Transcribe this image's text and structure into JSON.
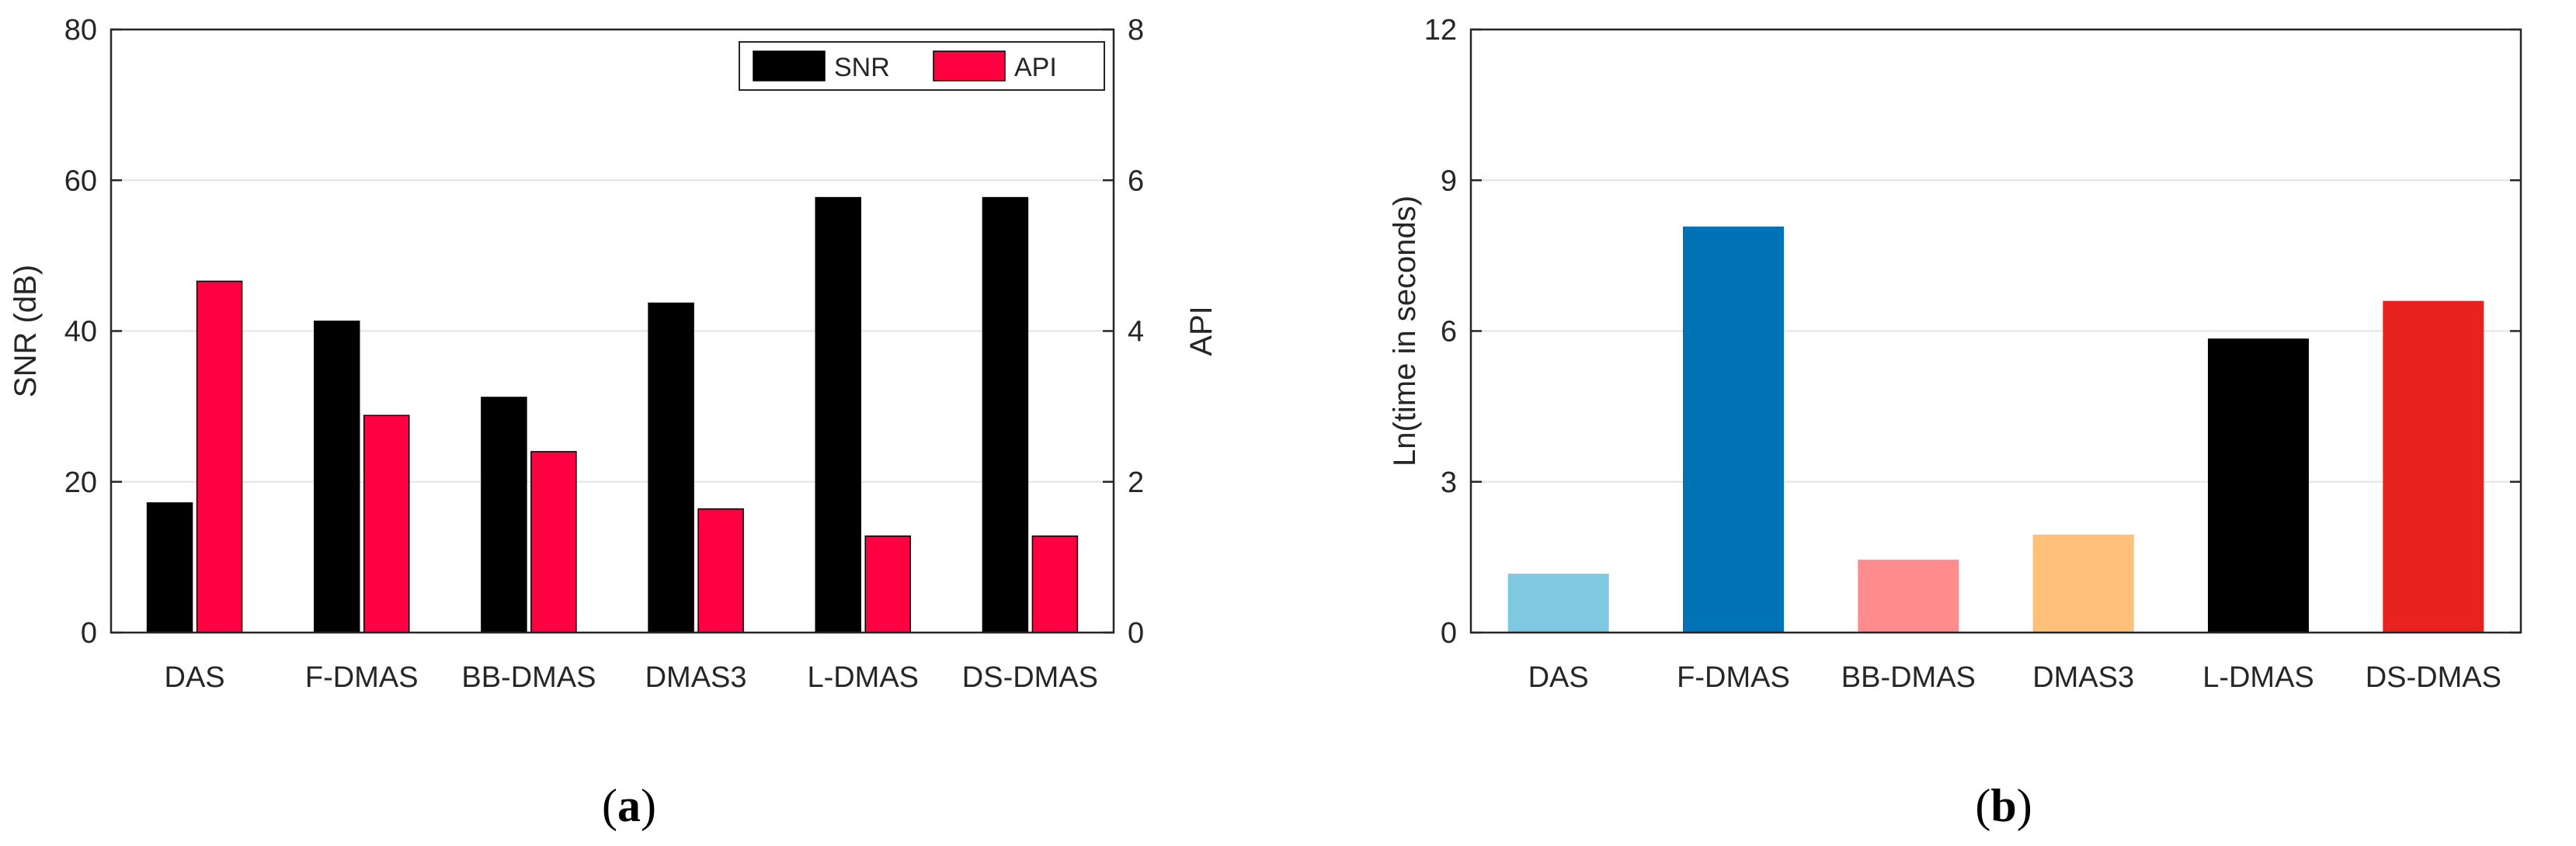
{
  "panels": [
    {
      "label_open": "(",
      "label_letter": "a",
      "label_close": ")"
    },
    {
      "label_open": "(",
      "label_letter": "b",
      "label_close": ")"
    }
  ],
  "chart_data": [
    {
      "type": "bar",
      "title": "",
      "categories": [
        "DAS",
        "F-DMAS",
        "BB-DMAS",
        "DMAS3",
        "L-DMAS",
        "DS-DMAS"
      ],
      "ylabel": "SNR (dB)",
      "ylabel_right": "API",
      "ylim": [
        0,
        80
      ],
      "ylim_right": [
        0,
        8
      ],
      "yticks": [
        0,
        20,
        40,
        60,
        80
      ],
      "yticks_right": [
        0,
        2,
        4,
        6,
        8
      ],
      "grid": true,
      "legend_position": "top-right",
      "series": [
        {
          "name": "SNR",
          "axis": "left",
          "color": "#000000",
          "values": [
            17.2,
            41.3,
            31.2,
            43.7,
            57.7,
            57.7
          ]
        },
        {
          "name": "API",
          "axis": "right",
          "color": "#ff0040",
          "values": [
            4.66,
            2.88,
            2.4,
            1.64,
            1.28,
            1.28
          ]
        }
      ]
    },
    {
      "type": "bar",
      "title": "",
      "categories": [
        "DAS",
        "F-DMAS",
        "BB-DMAS",
        "DMAS3",
        "L-DMAS",
        "DS-DMAS"
      ],
      "ylabel": "Ln(time in seconds)",
      "ylim": [
        0,
        12
      ],
      "yticks": [
        0,
        3,
        6,
        9,
        12
      ],
      "grid": true,
      "values": [
        1.17,
        8.08,
        1.45,
        1.95,
        5.85,
        6.6
      ],
      "colors": [
        "#7ec8e0",
        "#0073b7",
        "#ff8c8c",
        "#ffc07a",
        "#000000",
        "#e8231f"
      ]
    }
  ]
}
